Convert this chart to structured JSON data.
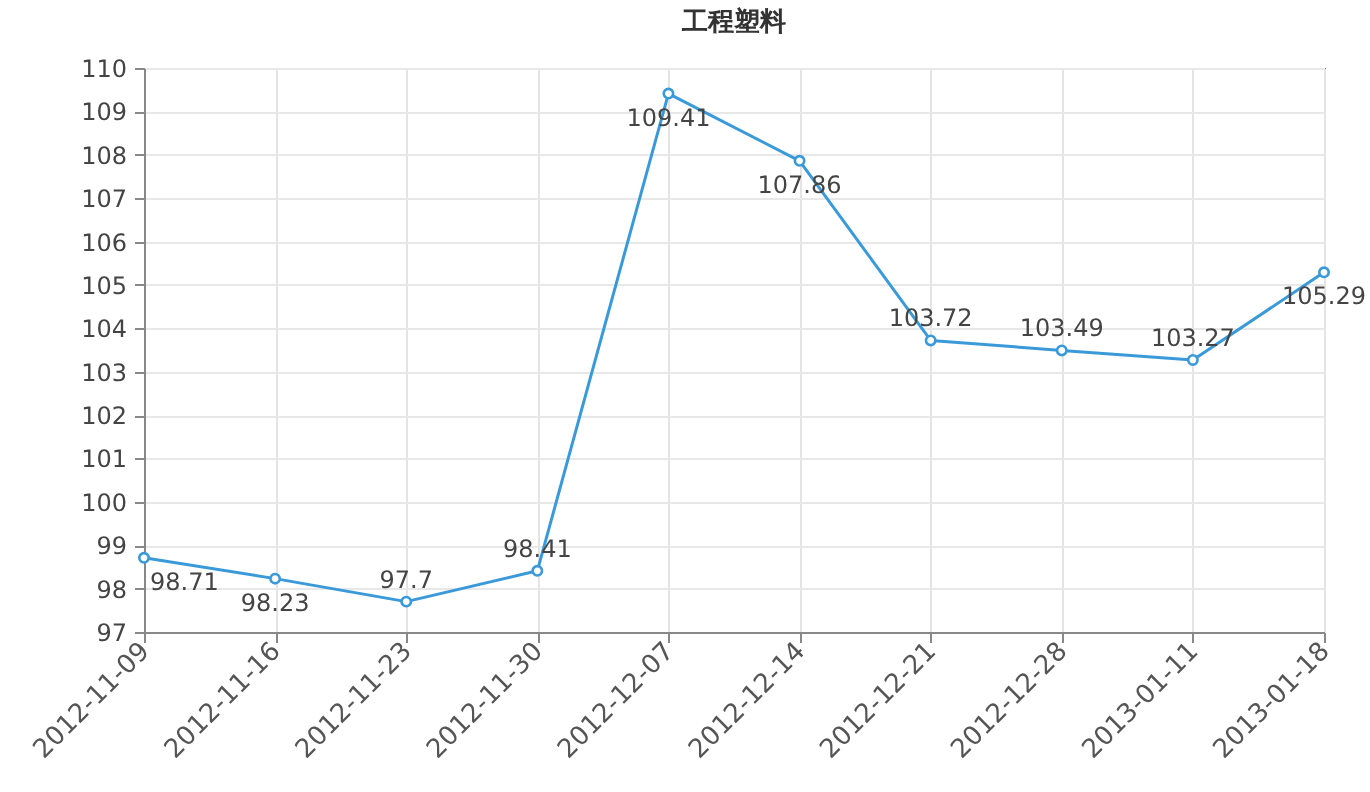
{
  "chart_data": {
    "type": "line",
    "title": "工程塑料",
    "categories": [
      "2012-11-09",
      "2012-11-16",
      "2012-11-23",
      "2012-11-30",
      "2012-12-07",
      "2012-12-14",
      "2012-12-21",
      "2012-12-28",
      "2013-01-11",
      "2013-01-18"
    ],
    "series": [
      {
        "color": "#3a9ad9",
        "values": [
          98.71,
          98.23,
          97.7,
          98.41,
          109.41,
          107.86,
          103.72,
          103.49,
          103.27,
          105.29
        ]
      }
    ],
    "ylim": [
      97,
      110
    ],
    "yticks": [
      97,
      98,
      99,
      100,
      101,
      102,
      103,
      104,
      105,
      106,
      107,
      108,
      109,
      110
    ],
    "grid": true,
    "data_labels": true,
    "marker": "circle",
    "line_style": "solid"
  }
}
